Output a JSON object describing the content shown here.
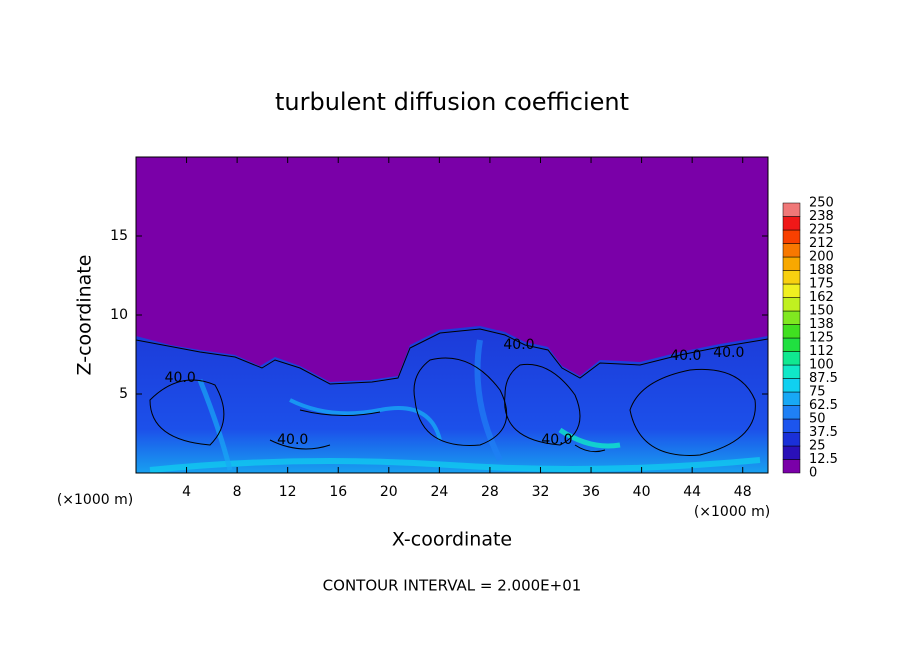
{
  "chart_data": {
    "type": "contour",
    "title": "turbulent diffusion coefficient",
    "xlabel": "X-coordinate",
    "ylabel": "Z-coordinate",
    "x_unit_labels": [
      "(×1000 m)",
      "(×1000 m)"
    ],
    "footnote": "CONTOUR INTERVAL = 2.000E+01",
    "xlim": [
      0,
      50
    ],
    "xticks": [
      4,
      8,
      12,
      16,
      20,
      24,
      28,
      32,
      36,
      40,
      44,
      48
    ],
    "ylim": [
      0,
      20
    ],
    "yticks": [
      5,
      10,
      15
    ],
    "colorbar": {
      "levels": [
        0,
        12.5,
        25,
        37.5,
        50,
        62.5,
        75,
        87.5,
        100,
        112,
        125,
        138,
        150,
        162,
        175,
        188,
        200,
        212,
        225,
        238,
        250
      ],
      "colors": [
        "#7a00a8",
        "#2a10b8",
        "#1a30d8",
        "#1c55ee",
        "#1f80f5",
        "#18a8f5",
        "#10d0f0",
        "#10e8c8",
        "#10e890",
        "#20e040",
        "#40e020",
        "#80e820",
        "#c0f020",
        "#f0f020",
        "#f8d010",
        "#f8a800",
        "#f87800",
        "#f84000",
        "#f01818",
        "#f07878"
      ]
    },
    "contour_labels": [
      {
        "text": "40.0",
        "x": 30.3,
        "y": 8.1
      },
      {
        "text": "40.0",
        "x": 43.5,
        "y": 7.4
      },
      {
        "text": "40.0",
        "x": 46.9,
        "y": 7.6
      },
      {
        "text": "40.0",
        "x": 33.3,
        "y": 2.1
      },
      {
        "text": "40.0",
        "x": 3.5,
        "y": 6.0
      },
      {
        "text": "40.0",
        "x": 12.4,
        "y": 2.1
      }
    ]
  }
}
